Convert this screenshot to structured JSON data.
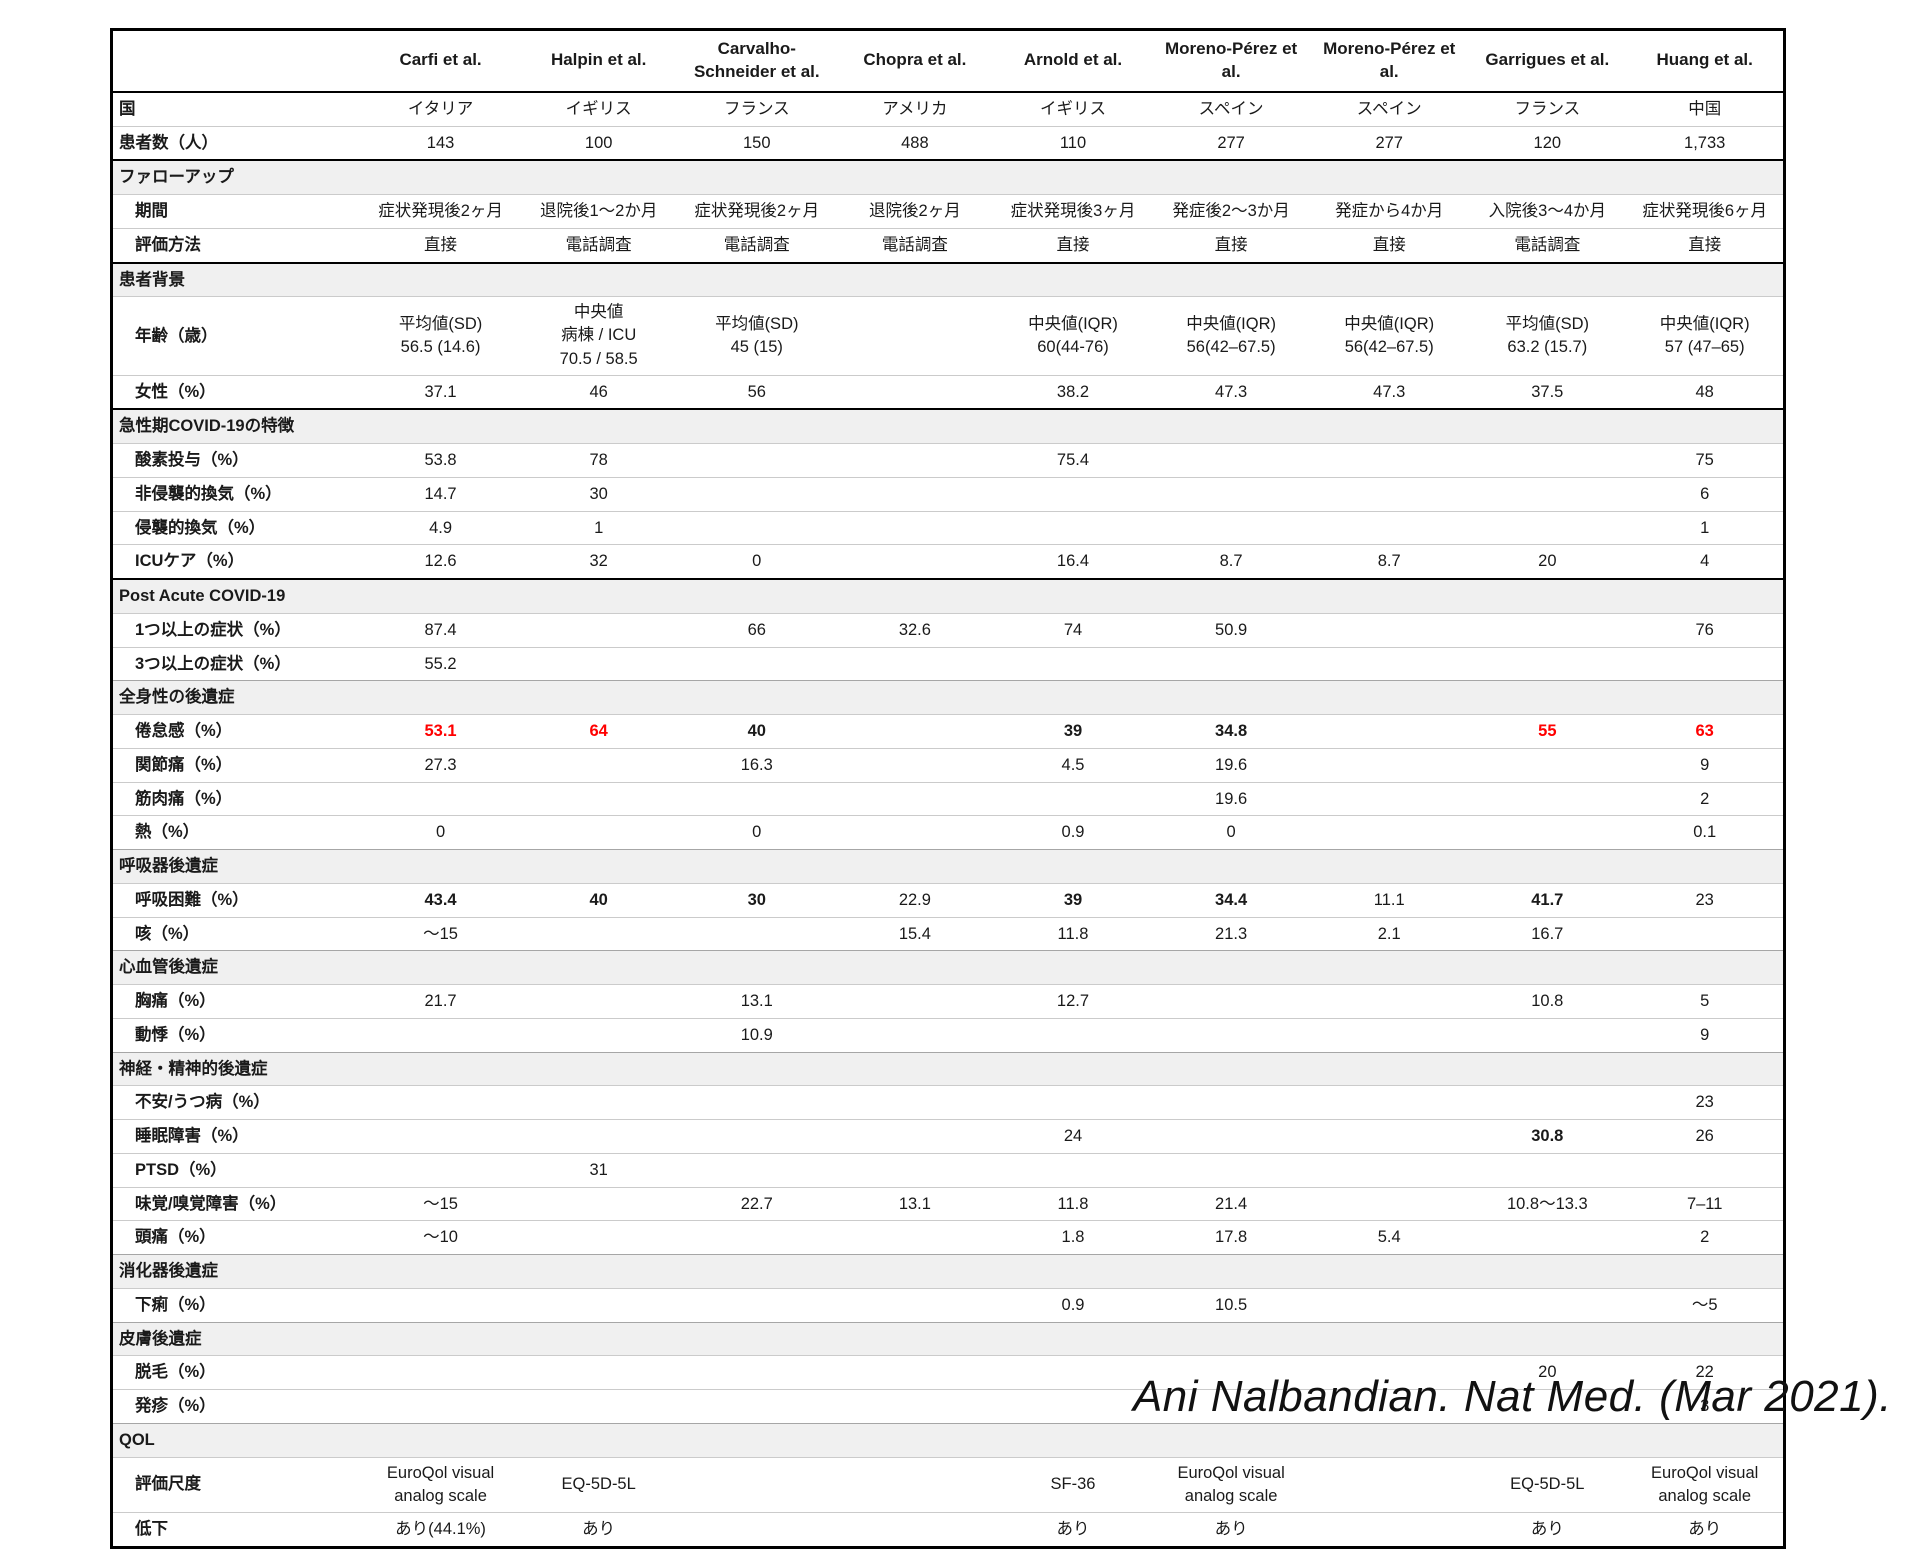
{
  "table": {
    "columns": [
      "Carfi et al.",
      "Halpin et al.",
      "Carvalho-Schneider et al.",
      "Chopra et al.",
      "Arnold et al.",
      "Moreno-Pérez et al.",
      "Moreno-Pérez et al.",
      "Garrigues et al.",
      "Huang et al."
    ],
    "rows": [
      {
        "type": "data",
        "label": "国",
        "indent": false,
        "values": [
          "イタリア",
          "イギリス",
          "フランス",
          "アメリカ",
          "イギリス",
          "スペイン",
          "スペイン",
          "フランス",
          "中国"
        ]
      },
      {
        "type": "data",
        "label": "患者数（人）",
        "indent": false,
        "values": [
          "143",
          "100",
          "150",
          "488",
          "110",
          "277",
          "277",
          "120",
          "1,733"
        ]
      },
      {
        "type": "section",
        "label": "ファローアップ",
        "thick_top": true
      },
      {
        "type": "data",
        "label": "期間",
        "indent": true,
        "values": [
          "症状発現後2ヶ月",
          "退院後1〜2か月",
          "症状発現後2ヶ月",
          "退院後2ヶ月",
          "症状発現後3ヶ月",
          "発症後2〜3か月",
          "発症から4か月",
          "入院後3〜4か月",
          "症状発現後6ヶ月"
        ]
      },
      {
        "type": "data",
        "label": "評価方法",
        "indent": true,
        "values": [
          "直接",
          "電話調査",
          "電話調査",
          "電話調査",
          "直接",
          "直接",
          "直接",
          "電話調査",
          "直接"
        ]
      },
      {
        "type": "section",
        "label": "患者背景",
        "thick_top": true
      },
      {
        "type": "data",
        "label": "年齢（歳）",
        "indent": true,
        "values": [
          "平均値(SD)\n56.5 (14.6)",
          "中央値\n病棟 / ICU\n70.5 / 58.5",
          "平均値(SD)\n45 (15)",
          "",
          "中央値(IQR)\n60(44-76)",
          "中央値(IQR)\n56(42–67.5)",
          "中央値(IQR)\n56(42–67.5)",
          "平均値(SD)\n63.2 (15.7)",
          "中央値(IQR)\n57 (47–65)"
        ]
      },
      {
        "type": "data",
        "label": "女性（%）",
        "indent": true,
        "values": [
          "37.1",
          "46",
          "56",
          "",
          "38.2",
          "47.3",
          "47.3",
          "37.5",
          "48"
        ]
      },
      {
        "type": "section",
        "label": "急性期COVID-19の特徴",
        "thick_top": true
      },
      {
        "type": "data",
        "label": "酸素投与（%）",
        "indent": true,
        "values": [
          "53.8",
          "78",
          "",
          "",
          "75.4",
          "",
          "",
          "",
          "75"
        ]
      },
      {
        "type": "data",
        "label": "非侵襲的換気（%）",
        "indent": true,
        "values": [
          "14.7",
          "30",
          "",
          "",
          "",
          "",
          "",
          "",
          "6"
        ]
      },
      {
        "type": "data",
        "label": "侵襲的換気（%）",
        "indent": true,
        "values": [
          "4.9",
          "1",
          "",
          "",
          "",
          "",
          "",
          "",
          "1"
        ]
      },
      {
        "type": "data",
        "label": "ICUケア（%）",
        "indent": true,
        "values": [
          "12.6",
          "32",
          "0",
          "",
          "16.4",
          "8.7",
          "8.7",
          "20",
          "4"
        ]
      },
      {
        "type": "section",
        "label": "Post Acute COVID-19",
        "thick_top": true
      },
      {
        "type": "data",
        "label": "1つ以上の症状（%）",
        "indent": true,
        "values": [
          "87.4",
          "",
          "66",
          "32.6",
          "74",
          "50.9",
          "",
          "",
          "76"
        ]
      },
      {
        "type": "data",
        "label": "3つ以上の症状（%）",
        "indent": true,
        "values": [
          "55.2",
          "",
          "",
          "",
          "",
          "",
          "",
          "",
          ""
        ]
      },
      {
        "type": "section",
        "label": "全身性の後遺症"
      },
      {
        "type": "data",
        "label": "倦怠感（%）",
        "indent": true,
        "values": [
          "53.1",
          "64",
          "40",
          "",
          "39",
          "34.8",
          "",
          "55",
          "63"
        ],
        "emphasis": [
          "red",
          "red",
          "bold",
          "",
          "bold",
          "bold",
          "",
          "red",
          "red"
        ]
      },
      {
        "type": "data",
        "label": "関節痛（%）",
        "indent": true,
        "values": [
          "27.3",
          "",
          "16.3",
          "",
          "4.5",
          "19.6",
          "",
          "",
          "9"
        ]
      },
      {
        "type": "data",
        "label": "筋肉痛（%）",
        "indent": true,
        "values": [
          "",
          "",
          "",
          "",
          "",
          "19.6",
          "",
          "",
          "2"
        ]
      },
      {
        "type": "data",
        "label": "熱（%）",
        "indent": true,
        "values": [
          "0",
          "",
          "0",
          "",
          "0.9",
          "0",
          "",
          "",
          "0.1"
        ]
      },
      {
        "type": "section",
        "label": "呼吸器後遺症"
      },
      {
        "type": "data",
        "label": "呼吸困難（%）",
        "indent": true,
        "values": [
          "43.4",
          "40",
          "30",
          "22.9",
          "39",
          "34.4",
          "11.1",
          "41.7",
          "23"
        ],
        "emphasis": [
          "bold",
          "bold",
          "bold",
          "",
          "bold",
          "bold",
          "",
          "bold",
          ""
        ]
      },
      {
        "type": "data",
        "label": "咳（%）",
        "indent": true,
        "values": [
          "〜15",
          "",
          "",
          "15.4",
          "11.8",
          "21.3",
          "2.1",
          "16.7",
          ""
        ]
      },
      {
        "type": "section",
        "label": "心血管後遺症"
      },
      {
        "type": "data",
        "label": "胸痛（%）",
        "indent": true,
        "values": [
          "21.7",
          "",
          "13.1",
          "",
          "12.7",
          "",
          "",
          "10.8",
          "5"
        ]
      },
      {
        "type": "data",
        "label": "動悸（%）",
        "indent": true,
        "values": [
          "",
          "",
          "10.9",
          "",
          "",
          "",
          "",
          "",
          "9"
        ]
      },
      {
        "type": "section",
        "label": "神経・精神的後遺症"
      },
      {
        "type": "data",
        "label": "不安/うつ病（%）",
        "indent": true,
        "values": [
          "",
          "",
          "",
          "",
          "",
          "",
          "",
          "",
          "23"
        ]
      },
      {
        "type": "data",
        "label": "睡眠障害（%）",
        "indent": true,
        "values": [
          "",
          "",
          "",
          "",
          "24",
          "",
          "",
          "30.8",
          "26"
        ],
        "emphasis": [
          "",
          "",
          "",
          "",
          "",
          "",
          "",
          "bold",
          ""
        ]
      },
      {
        "type": "data",
        "label": "PTSD（%）",
        "indent": true,
        "values": [
          "",
          "31",
          "",
          "",
          "",
          "",
          "",
          "",
          ""
        ]
      },
      {
        "type": "data",
        "label": "味覚/嗅覚障害（%）",
        "indent": true,
        "values": [
          "〜15",
          "",
          "22.7",
          "13.1",
          "11.8",
          "21.4",
          "",
          "10.8〜13.3",
          "7–11"
        ]
      },
      {
        "type": "data",
        "label": "頭痛（%）",
        "indent": true,
        "values": [
          "〜10",
          "",
          "",
          "",
          "1.8",
          "17.8",
          "5.4",
          "",
          "2"
        ]
      },
      {
        "type": "section",
        "label": "消化器後遺症"
      },
      {
        "type": "data",
        "label": "下痢（%）",
        "indent": true,
        "values": [
          "",
          "",
          "",
          "",
          "0.9",
          "10.5",
          "",
          "",
          "〜5"
        ]
      },
      {
        "type": "section",
        "label": "皮膚後遺症"
      },
      {
        "type": "data",
        "label": "脱毛（%）",
        "indent": true,
        "values": [
          "",
          "",
          "",
          "",
          "",
          "",
          "",
          "20",
          "22"
        ]
      },
      {
        "type": "data",
        "label": "発疹（%）",
        "indent": true,
        "values": [
          "",
          "",
          "",
          "",
          "",
          "",
          "",
          "",
          "3"
        ]
      },
      {
        "type": "section",
        "label": "QOL"
      },
      {
        "type": "data",
        "label": "評価尺度",
        "indent": true,
        "values": [
          "EuroQol visual\nanalog scale",
          "EQ-5D-5L",
          "",
          "",
          "SF-36",
          "EuroQol visual\nanalog scale",
          "",
          "EQ-5D-5L",
          "EuroQol visual\nanalog scale"
        ]
      },
      {
        "type": "data",
        "label": "低下",
        "indent": true,
        "values": [
          "あり(44.1%)",
          "あり",
          "",
          "",
          "あり",
          "あり",
          "",
          "あり",
          "あり"
        ]
      }
    ]
  },
  "caption": "Ani Nalbandian. Nat Med. (Mar 2021).",
  "colors": {
    "highlight_red": "#ff0000",
    "section_bg": "#f0f0f0",
    "border_dark": "#000000",
    "border_light": "#cbcbcb"
  }
}
